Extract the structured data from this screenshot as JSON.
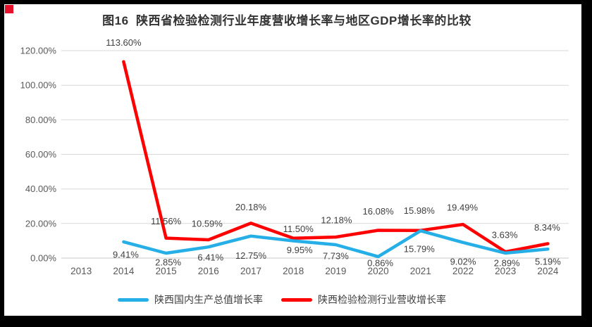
{
  "window": {
    "frame_color": "#000000",
    "background": "#ffffff",
    "corner_marker_color": "#e8112d"
  },
  "title": "图16  陕西省检验检测行业年度营收增长率与地区GDP增长率的比较",
  "legend": [
    {
      "label": "陕西国内生产总值增长率",
      "color": "#25AFE6"
    },
    {
      "label": "陕西检验检测行业营收增长率",
      "color": "#FF0000"
    }
  ],
  "chart_data": {
    "type": "line",
    "title": "图16 陕西省检验检测行业年度营收增长率与地区GDP增长率的比较",
    "categories": [
      "2013",
      "2014",
      "2015",
      "2016",
      "2017",
      "2018",
      "2019",
      "2020",
      "2021",
      "2022",
      "2023",
      "2024"
    ],
    "series": [
      {
        "name": "陕西国内生产总值增长率",
        "color": "#25AFE6",
        "values": [
          null,
          9.41,
          2.85,
          6.41,
          12.75,
          9.95,
          7.73,
          0.86,
          15.79,
          9.02,
          2.89,
          5.19
        ],
        "point_labels": [
          "",
          "9.41%",
          "2.85%",
          "6.41%",
          "12.75%",
          "9.95%",
          "7.73%",
          "0.86%",
          "15.79%",
          "9.02%",
          "2.89%",
          "5.19%"
        ],
        "label_offsets": [
          [
            0,
            0
          ],
          [
            3,
            18
          ],
          [
            3,
            13
          ],
          [
            3,
            15
          ],
          [
            0,
            28
          ],
          [
            9,
            13
          ],
          [
            0,
            16
          ],
          [
            3,
            9
          ],
          [
            -2,
            26
          ],
          [
            0,
            27
          ],
          [
            2,
            14
          ],
          [
            0,
            18
          ]
        ]
      },
      {
        "name": "陕西检验检测行业营收增长率",
        "color": "#FF0000",
        "values": [
          null,
          113.6,
          11.56,
          10.59,
          20.18,
          11.5,
          12.18,
          16.08,
          15.98,
          19.49,
          3.63,
          8.34
        ],
        "point_labels": [
          "",
          "113.60%",
          "11.56%",
          "10.59%",
          "20.18%",
          "11.50%",
          "12.18%",
          "16.08%",
          "15.98%",
          "19.49%",
          "3.63%",
          "8.34%"
        ],
        "label_offsets": [
          [
            0,
            0
          ],
          [
            0,
            -27
          ],
          [
            0,
            -24
          ],
          [
            -2,
            -23
          ],
          [
            0,
            -23
          ],
          [
            7,
            -13
          ],
          [
            1,
            -24
          ],
          [
            0,
            -27
          ],
          [
            -2,
            -28
          ],
          [
            -1,
            -24
          ],
          [
            -1,
            -24
          ],
          [
            -1,
            -23
          ]
        ]
      }
    ],
    "xlabel": "",
    "ylabel": "",
    "ylim": [
      0,
      120
    ],
    "ytick_interval": 20,
    "ytick_labels": [
      "0.00%",
      "20.00%",
      "40.00%",
      "60.00%",
      "80.00%",
      "100.00%",
      "120.00%"
    ],
    "grid": true,
    "legend_position": "bottom",
    "axis_text_color": "#595959",
    "data_label_color": "#404040",
    "grid_color": "#D9D9D9"
  }
}
